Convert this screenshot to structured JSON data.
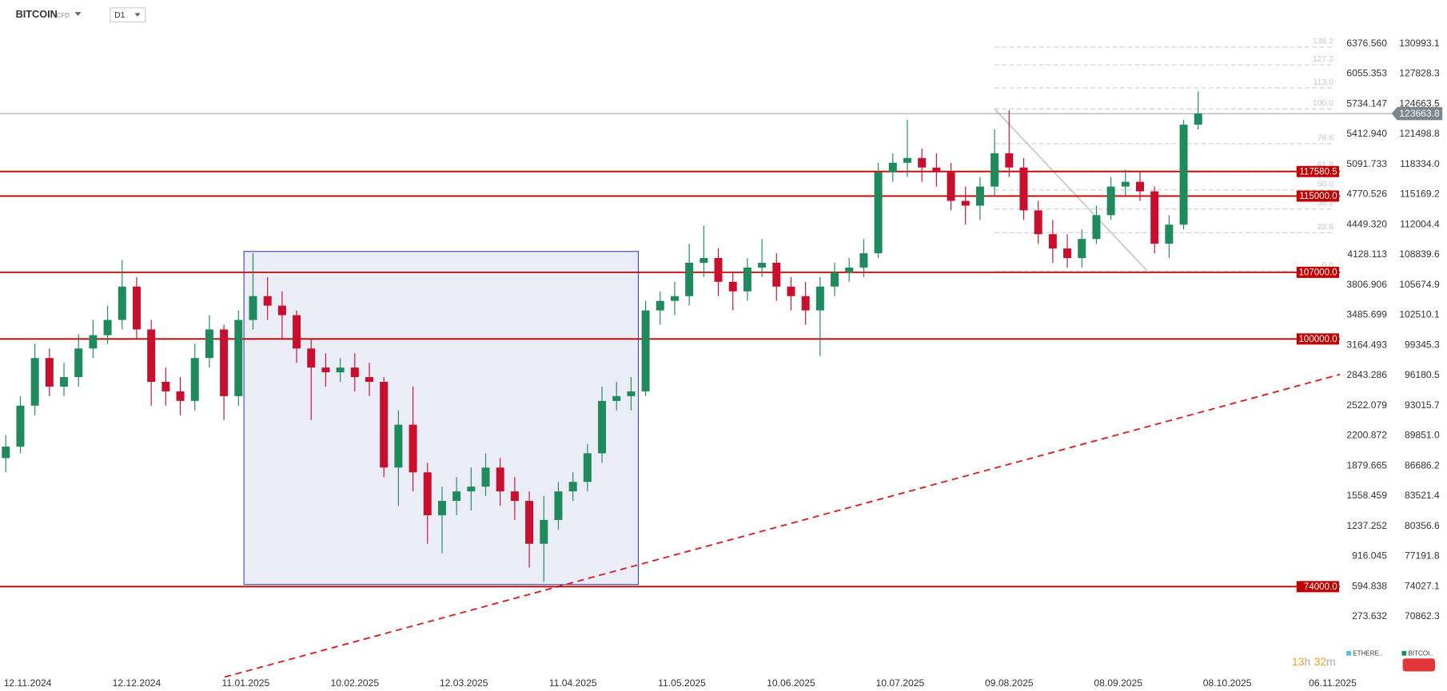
{
  "chart_data": {
    "type": "candlestick",
    "symbol": "BITCOIN",
    "instrument": "CFD",
    "timeframe": "D1",
    "xlim": [
      -7.6,
      361
    ],
    "xticks": [
      {
        "value": 0,
        "label": "12.11.2024"
      },
      {
        "value": 30,
        "label": "12.12.2024"
      },
      {
        "value": 60,
        "label": "11.01.2025"
      },
      {
        "value": 90,
        "label": "10.02.2025"
      },
      {
        "value": 120,
        "label": "12.03.2025"
      },
      {
        "value": 150,
        "label": "11.04.2025"
      },
      {
        "value": 180,
        "label": "11.05.2025"
      },
      {
        "value": 210,
        "label": "10.06.2025"
      },
      {
        "value": 240,
        "label": "10.07.2025"
      },
      {
        "value": 270,
        "label": "09.08.2025"
      },
      {
        "value": 300,
        "label": "08.09.2025"
      },
      {
        "value": 330,
        "label": "08.10.2025"
      },
      {
        "value": 359,
        "label": "06.11.2025"
      }
    ],
    "ylim": [
      65195,
      135588
    ],
    "yticks": [
      130993.1,
      127828.3,
      124663.5,
      121498.8,
      {
        "value": 118334,
        "label": "118334.0"
      },
      115169.2,
      112004.4,
      108839.6,
      105674.9,
      102510.1,
      99345.3,
      96180.5,
      93015.7,
      {
        "value": 89851,
        "label": "89851.0"
      },
      86686.2,
      83521.4,
      80356.6,
      77191.8,
      74027.1,
      70862.3
    ],
    "y2lim": [
      -301.5,
      6842.9
    ],
    "y2ticks": [
      {
        "value": 6376.56,
        "label": "6376.560"
      },
      6055.353,
      5734.147,
      {
        "value": 5412.94,
        "label": "5412.940"
      },
      5091.733,
      4770.526,
      {
        "value": 4449.32,
        "label": "4449.320"
      },
      4128.113,
      3806.906,
      3485.699,
      3164.493,
      2843.286,
      2522.079,
      2200.872,
      1879.665,
      1558.459,
      1237.252,
      916.045,
      594.838,
      273.632
    ],
    "up_color": "#1f8a5b",
    "down_color": "#c8102e",
    "x": [
      -6,
      -2,
      2,
      6,
      10,
      14,
      18,
      22,
      26,
      30,
      34,
      38,
      42,
      46,
      50,
      54,
      58,
      62,
      66,
      70,
      74,
      78,
      82,
      86,
      90,
      94,
      98,
      102,
      106,
      110,
      114,
      118,
      122,
      126,
      130,
      134,
      138,
      142,
      146,
      150,
      154,
      158,
      162,
      166,
      170,
      174,
      178,
      182,
      186,
      190,
      194,
      198,
      202,
      206,
      210,
      214,
      218,
      222,
      226,
      230,
      234,
      238,
      242,
      246,
      250,
      254,
      258,
      262,
      266,
      270,
      274,
      278,
      282,
      286,
      290,
      294,
      298,
      302,
      306,
      310,
      314,
      318,
      322
    ],
    "open": [
      87500,
      88700,
      93000,
      98000,
      95000,
      96000,
      99000,
      100400,
      102000,
      105500,
      101000,
      95500,
      94500,
      93500,
      98000,
      101000,
      94000,
      102000,
      104500,
      103500,
      102500,
      99000,
      97000,
      96500,
      97000,
      96000,
      95500,
      86500,
      91000,
      86000,
      81500,
      83000,
      84000,
      84500,
      86500,
      84000,
      83000,
      78500,
      81000,
      84000,
      85000,
      88000,
      93500,
      94000,
      94500,
      103000,
      104000,
      104500,
      108000,
      108500,
      106000,
      105000,
      107500,
      108000,
      105500,
      104500,
      103000,
      105500,
      107000,
      107500,
      109000,
      117500,
      118500,
      119000,
      118000,
      117500,
      114500,
      114000,
      116000,
      119500,
      118000,
      113500,
      111000,
      109500,
      108500,
      110500,
      113000,
      116000,
      116500,
      115500,
      110000,
      112000,
      122500
    ],
    "high": [
      89900,
      94000,
      99500,
      99000,
      97500,
      100500,
      102000,
      103500,
      108300,
      106500,
      102000,
      97000,
      96000,
      99500,
      102500,
      101500,
      103000,
      109000,
      106500,
      105000,
      103000,
      100000,
      98500,
      98000,
      98500,
      97500,
      96000,
      92500,
      95000,
      87000,
      84500,
      85500,
      86500,
      88000,
      87500,
      85500,
      84000,
      83500,
      85000,
      86000,
      89000,
      95000,
      95500,
      96000,
      104000,
      105000,
      106000,
      110000,
      111900,
      109500,
      107000,
      108500,
      110500,
      109000,
      106500,
      106000,
      106500,
      108000,
      108500,
      110500,
      118500,
      119500,
      123000,
      120000,
      119500,
      118500,
      116000,
      117000,
      122000,
      124000,
      119000,
      114500,
      112500,
      111000,
      111500,
      114000,
      117000,
      117800,
      117500,
      116000,
      113000,
      123000,
      126000
    ],
    "low": [
      86000,
      88000,
      92000,
      94000,
      94000,
      95000,
      98000,
      99500,
      101000,
      100000,
      93000,
      93000,
      92000,
      92500,
      97000,
      91500,
      93000,
      101000,
      102000,
      100000,
      97500,
      91500,
      95000,
      95500,
      94500,
      94000,
      85500,
      82500,
      84000,
      78500,
      77500,
      81500,
      82000,
      83500,
      82500,
      81000,
      76000,
      74500,
      80000,
      83000,
      84000,
      87000,
      92500,
      92500,
      94000,
      101500,
      102500,
      103500,
      106500,
      104500,
      103000,
      104000,
      106500,
      104000,
      103000,
      101500,
      98200,
      104500,
      106000,
      106500,
      108500,
      116500,
      117000,
      116500,
      116000,
      113500,
      112000,
      112500,
      115000,
      117000,
      112500,
      110000,
      108000,
      107500,
      107500,
      110000,
      112500,
      115000,
      114500,
      109000,
      108500,
      111500,
      122000
    ],
    "levels": [
      117580.5,
      {
        "value": 115000,
        "label": "115000.0"
      },
      {
        "value": 107000,
        "label": "107000.0"
      },
      {
        "value": 100000,
        "label": "100000.0"
      },
      {
        "value": 74000,
        "label": "74000.0"
      }
    ],
    "level_color": "#c00000",
    "current_price": 123663.8,
    "fib": {
      "x": [
        266,
        308
      ],
      "high": 124150,
      "low": 107140,
      "levels": [
        138.2,
        127.2,
        {
          "value": 113,
          "label": "113.0"
        },
        {
          "value": 100,
          "label": "100.0"
        },
        78.6,
        61.8,
        {
          "value": 50,
          "label": "50.0"
        },
        38.2,
        23.6,
        {
          "value": 0,
          "label": "0.0"
        }
      ]
    },
    "zone": {
      "x": [
        59.5,
        168
      ],
      "y": [
        74220,
        109190
      ],
      "color": "#3f4fa8"
    },
    "trendline": {
      "x": [
        54.2,
        361
      ],
      "y": [
        64510,
        96280
      ],
      "color": "#d42020"
    },
    "countdown": {
      "hours": 13,
      "hour_unit": "h",
      "minutes": 32,
      "minute_unit": "m"
    },
    "legend": [
      {
        "name": "ETHERE..",
        "color": "#4fc3e8"
      },
      {
        "name": "BITCOI..",
        "color": "#1f8a5b"
      }
    ]
  }
}
